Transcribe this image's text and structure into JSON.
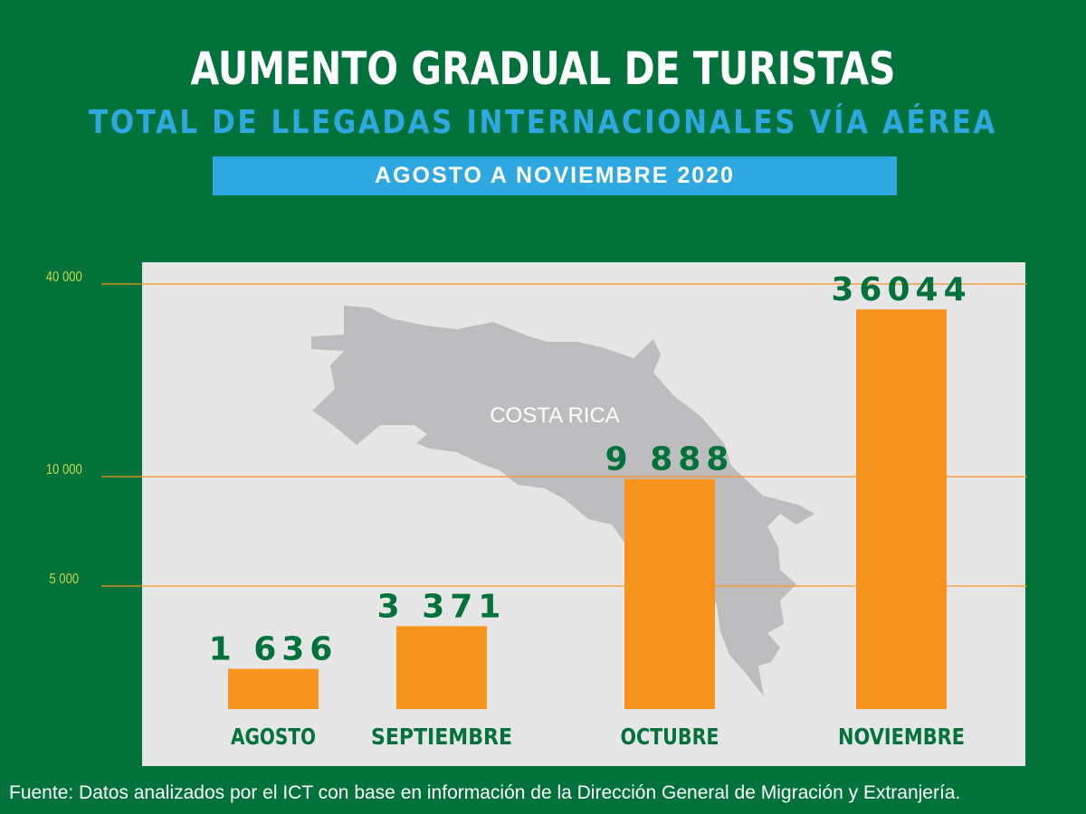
{
  "header": {
    "title": "AUMENTO GRADUAL DE TURISTAS",
    "subtitle": "TOTAL DE LLEGADAS INTERNACIONALES VÍA AÉREA",
    "period": "AGOSTO A NOVIEMBRE 2020"
  },
  "map": {
    "label": "COSTA RICA"
  },
  "chart_data": {
    "type": "bar",
    "categories": [
      "AGOSTO",
      "SEPTIEMBRE",
      "OCTUBRE",
      "NOVIEMBRE"
    ],
    "values": [
      1636,
      3371,
      9888,
      36044
    ],
    "value_labels": [
      "1 636",
      "3 371",
      "9 888",
      "36044"
    ],
    "yticks": [
      5000,
      10000,
      40000
    ],
    "ytick_labels": [
      "5 000",
      "10 000",
      "40 000"
    ],
    "title": "AUMENTO GRADUAL DE TURISTAS",
    "xlabel": "",
    "ylabel": "",
    "grid": true,
    "colors": {
      "bar": "#f7941d",
      "grid": "#f7941d",
      "label": "#00723a",
      "tick": "#c8d64b",
      "panel": "#e6e6e6",
      "map": "#bdbdbf"
    }
  },
  "footer": {
    "source": "Fuente: Datos analizados por el ICT con base en información de la Dirección General de Migración y Extranjería."
  }
}
